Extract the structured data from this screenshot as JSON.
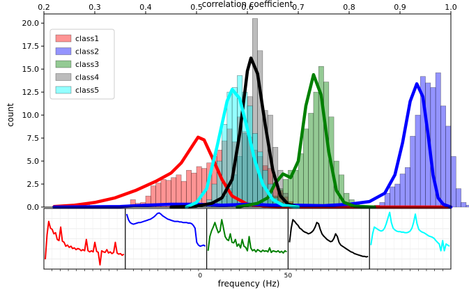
{
  "chart_data": {
    "type": "bar",
    "xlabel_top": "correlation coefficient",
    "xlabel_bottom": "frequency (Hz)",
    "ylabel": "count",
    "xlim": [
      0.2,
      1.0
    ],
    "ylim": [
      0,
      21
    ],
    "x_ticks": [
      "0.2",
      "0.3",
      "0.4",
      "0.5",
      "0.6",
      "0.7",
      "0.8",
      "0.9",
      "1.0"
    ],
    "x_tick_values": [
      0.2,
      0.3,
      0.4,
      0.5,
      0.6,
      0.7,
      0.8,
      0.9,
      1.0
    ],
    "y_ticks": [
      "0.0",
      "2.5",
      "5.0",
      "7.5",
      "10.0",
      "12.5",
      "15.0",
      "17.5",
      "20.0"
    ],
    "y_tick_values": [
      0,
      2.5,
      5,
      7.5,
      10,
      12.5,
      15,
      17.5,
      20
    ],
    "legend_position": "top-left",
    "bin_width": 0.01,
    "series": [
      {
        "name": "class1",
        "color": "#ff0000",
        "bin_start": 0.28,
        "values": [
          0.3,
          0,
          0,
          0,
          0,
          0,
          0,
          0,
          0.2,
          0.8,
          0.4,
          0.5,
          1.2,
          2.3,
          2.6,
          3.0,
          2.9,
          3.2,
          3.5,
          2.8,
          4.0,
          3.7,
          4.4,
          4.2,
          4.8,
          5.5,
          6.2,
          7.2,
          8.5,
          7.1,
          9.8,
          8.2,
          7.6,
          6.2,
          5.5,
          4.5,
          4.2,
          2.5,
          1.8,
          1.1,
          0.6,
          0.3,
          0.2,
          0.1
        ],
        "kde": [
          [
            0.22,
            0.05
          ],
          [
            0.26,
            0.2
          ],
          [
            0.3,
            0.5
          ],
          [
            0.34,
            1.0
          ],
          [
            0.38,
            1.8
          ],
          [
            0.42,
            2.8
          ],
          [
            0.45,
            3.7
          ],
          [
            0.47,
            4.8
          ],
          [
            0.49,
            6.5
          ],
          [
            0.503,
            7.6
          ],
          [
            0.515,
            7.3
          ],
          [
            0.53,
            5.5
          ],
          [
            0.55,
            3.0
          ],
          [
            0.57,
            1.2
          ],
          [
            0.6,
            0.3
          ],
          [
            0.63,
            0.1
          ],
          [
            0.7,
            0.0
          ],
          [
            0.85,
            0.0
          ],
          [
            1.0,
            0.0
          ]
        ]
      },
      {
        "name": "class2",
        "color": "#0000ff",
        "bin_start": 0.84,
        "values": [
          0.1,
          0.2,
          0.5,
          1.5,
          2.2,
          2.5,
          3.6,
          4.3,
          7.7,
          10.0,
          14.2,
          13.5,
          13.0,
          14.6,
          11.0,
          8.8,
          5.5,
          2.0,
          0.5,
          0.2
        ],
        "kde": [
          [
            0.22,
            0.0
          ],
          [
            0.35,
            0.05
          ],
          [
            0.4,
            0.2
          ],
          [
            0.45,
            0.3
          ],
          [
            0.5,
            0.3
          ],
          [
            0.55,
            0.2
          ],
          [
            0.6,
            0.3
          ],
          [
            0.65,
            0.2
          ],
          [
            0.7,
            0.2
          ],
          [
            0.75,
            0.15
          ],
          [
            0.8,
            0.3
          ],
          [
            0.84,
            0.6
          ],
          [
            0.87,
            1.5
          ],
          [
            0.89,
            3.5
          ],
          [
            0.905,
            7.0
          ],
          [
            0.92,
            11.5
          ],
          [
            0.933,
            13.4
          ],
          [
            0.945,
            12.0
          ],
          [
            0.955,
            8.0
          ],
          [
            0.965,
            3.5
          ],
          [
            0.975,
            1.0
          ],
          [
            0.985,
            0.3
          ],
          [
            1.0,
            0.0
          ]
        ]
      },
      {
        "name": "class3",
        "color": "#008000",
        "bin_start": 0.63,
        "values": [
          0.3,
          0.8,
          1.2,
          2.0,
          3.0,
          4.0,
          4.0,
          5.8,
          8.5,
          10.2,
          12.5,
          15.3,
          13.6,
          9.8,
          5.0,
          3.5,
          1.5,
          0.8,
          0.3
        ],
        "kde": [
          [
            0.58,
            0.0
          ],
          [
            0.62,
            0.4
          ],
          [
            0.64,
            1.0
          ],
          [
            0.655,
            2.6
          ],
          [
            0.67,
            3.6
          ],
          [
            0.685,
            3.2
          ],
          [
            0.7,
            5.0
          ],
          [
            0.715,
            11.0
          ],
          [
            0.73,
            14.4
          ],
          [
            0.745,
            12.2
          ],
          [
            0.76,
            6.0
          ],
          [
            0.775,
            1.8
          ],
          [
            0.79,
            0.5
          ],
          [
            0.81,
            0.1
          ],
          [
            0.85,
            0.0
          ]
        ]
      },
      {
        "name": "class4",
        "color": "#606060",
        "bin_start": 0.53,
        "values": [
          0.3,
          0.7,
          1.2,
          2.0,
          3.5,
          5.5,
          8.0,
          12.0,
          20.5,
          17.0,
          10.5,
          10.0,
          6.5,
          4.0,
          1.5,
          0.4
        ],
        "kde": [
          [
            0.45,
            0.0
          ],
          [
            0.5,
            0.1
          ],
          [
            0.53,
            0.4
          ],
          [
            0.55,
            1.0
          ],
          [
            0.57,
            3.0
          ],
          [
            0.585,
            8.0
          ],
          [
            0.6,
            14.8
          ],
          [
            0.607,
            16.2
          ],
          [
            0.62,
            14.5
          ],
          [
            0.635,
            9.0
          ],
          [
            0.65,
            4.0
          ],
          [
            0.665,
            1.2
          ],
          [
            0.68,
            0.3
          ],
          [
            0.7,
            0.0
          ]
        ]
      },
      {
        "name": "class5",
        "color": "#00ffff",
        "bin_start": 0.51,
        "values": [
          0.3,
          0.8,
          2.5,
          5.0,
          9.0,
          12.5,
          13.0,
          14.3,
          12.5,
          11.0,
          8.0,
          6.0,
          4.0,
          2.5,
          1.0,
          0.5,
          0.2
        ],
        "kde": [
          [
            0.48,
            0.0
          ],
          [
            0.5,
            0.5
          ],
          [
            0.52,
            2.0
          ],
          [
            0.54,
            6.5
          ],
          [
            0.56,
            11.5
          ],
          [
            0.57,
            12.8
          ],
          [
            0.585,
            11.8
          ],
          [
            0.6,
            8.5
          ],
          [
            0.615,
            5.0
          ],
          [
            0.63,
            2.5
          ],
          [
            0.65,
            0.8
          ],
          [
            0.67,
            0.2
          ],
          [
            0.7,
            0.0
          ]
        ]
      }
    ],
    "spectra": {
      "x_ticks": [
        "0",
        "50"
      ],
      "panels": [
        {
          "series": "class1",
          "color": "#ff0000",
          "values": [
            0.15,
            0.58,
            0.82,
            0.7,
            0.68,
            0.6,
            0.62,
            0.5,
            0.48,
            0.72,
            0.47,
            0.45,
            0.38,
            0.4,
            0.36,
            0.38,
            0.34,
            0.35,
            0.32,
            0.34,
            0.33,
            0.3,
            0.32,
            0.3,
            0.5,
            0.3,
            0.28,
            0.3,
            0.28,
            0.45,
            0.29,
            0.27,
            0.05,
            0.3,
            0.28,
            0.27,
            0.32,
            0.26,
            0.28,
            0.25,
            0.27,
            0.45,
            0.26,
            0.24,
            0.25,
            0.22,
            0.24
          ]
        },
        {
          "series": "class2",
          "color": "#0000ff",
          "values": [
            0.95,
            0.85,
            0.8,
            0.78,
            0.77,
            0.78,
            0.79,
            0.8,
            0.8,
            0.81,
            0.82,
            0.83,
            0.84,
            0.85,
            0.86,
            0.88,
            0.9,
            0.93,
            0.96,
            0.97,
            0.95,
            0.92,
            0.9,
            0.88,
            0.86,
            0.85,
            0.84,
            0.83,
            0.82,
            0.82,
            0.82,
            0.81,
            0.81,
            0.8,
            0.8,
            0.8,
            0.79,
            0.79,
            0.78,
            0.75,
            0.7,
            0.45,
            0.4,
            0.38,
            0.39,
            0.4,
            0.38
          ]
        },
        {
          "series": "class3",
          "color": "#008000",
          "values": [
            0.3,
            0.55,
            0.65,
            0.72,
            0.8,
            0.7,
            0.62,
            0.65,
            0.85,
            0.7,
            0.55,
            0.5,
            0.48,
            0.6,
            0.45,
            0.44,
            0.5,
            0.38,
            0.42,
            0.35,
            0.5,
            0.38,
            0.36,
            0.3,
            0.55,
            0.35,
            0.3,
            0.32,
            0.28,
            0.32,
            0.3,
            0.28,
            0.31,
            0.29,
            0.3,
            0.28,
            0.35,
            0.27,
            0.3,
            0.29,
            0.28,
            0.3,
            0.27,
            0.29,
            0.26,
            0.3,
            0.28
          ]
        },
        {
          "series": "class4",
          "color": "#000000",
          "values": [
            0.45,
            0.7,
            0.85,
            0.82,
            0.78,
            0.75,
            0.7,
            0.68,
            0.65,
            0.63,
            0.62,
            0.6,
            0.61,
            0.63,
            0.66,
            0.72,
            0.8,
            0.78,
            0.68,
            0.6,
            0.56,
            0.53,
            0.5,
            0.48,
            0.46,
            0.47,
            0.52,
            0.6,
            0.55,
            0.45,
            0.4,
            0.38,
            0.36,
            0.34,
            0.32,
            0.3,
            0.28,
            0.27,
            0.25,
            0.24,
            0.23,
            0.22,
            0.21,
            0.2,
            0.2,
            0.19,
            0.2
          ]
        },
        {
          "series": "class5",
          "color": "#00ffff",
          "values": [
            0.4,
            0.6,
            0.72,
            0.7,
            0.68,
            0.66,
            0.65,
            0.66,
            0.7,
            0.78,
            0.88,
            0.98,
            0.8,
            0.7,
            0.67,
            0.65,
            0.64,
            0.64,
            0.63,
            0.63,
            0.62,
            0.62,
            0.63,
            0.65,
            0.7,
            0.8,
            0.95,
            0.78,
            0.68,
            0.65,
            0.63,
            0.62,
            0.6,
            0.58,
            0.56,
            0.55,
            0.54,
            0.52,
            0.48,
            0.45,
            0.42,
            0.3,
            0.48,
            0.3,
            0.42,
            0.4,
            0.38
          ]
        }
      ]
    }
  }
}
